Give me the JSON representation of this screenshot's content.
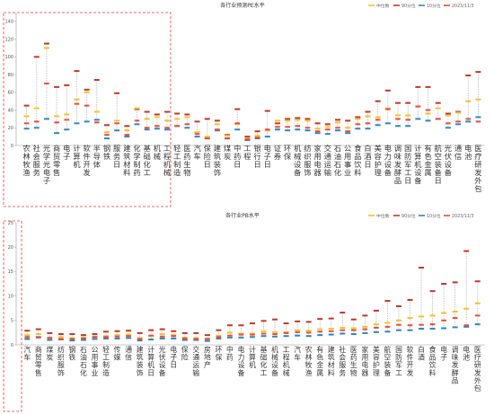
{
  "chart_data": [
    {
      "type": "box-range",
      "title": "各行业预测PE水平",
      "legend_position": "top-right",
      "series_names": [
        "中位数",
        "90分位",
        "10分位",
        "2023/11/3"
      ],
      "colors": {
        "median": "#f2c12e",
        "p90": "#c0392b",
        "p10": "#2e86c1",
        "current": "#e74c3c",
        "range_line": "#b0b0b0"
      },
      "y_ticks": [
        "0",
        "20",
        "40",
        "60",
        "80",
        "100",
        "120",
        "140"
      ],
      "ylim": [
        0,
        150
      ],
      "grid": false,
      "highlight_box": "first 13 categories (dashed red box)",
      "categories": [
        "农林牧渔",
        "社服",
        "光学光电子",
        "商贸零售",
        "电子",
        "计算机",
        "软件开发",
        "半导体",
        "钢铁",
        "服务",
        "建筑材料",
        "化学制药",
        "基础化工",
        "机械",
        "工程机械",
        "轻工制造",
        "医药生物",
        "汽车",
        "保险",
        "建筑装饰",
        "煤炭",
        "中药",
        "工程",
        "银行",
        "电子",
        "证券",
        "环保",
        "机械设备",
        "纺织服饰",
        "家用电器",
        "交通运输",
        "石油石化",
        "公用事业",
        "食品饮料",
        "白酒",
        "美容护理",
        "电力设备",
        "调味发酵品",
        "国防军工",
        "计算机设备",
        "有色金属",
        "航空装备",
        "光伏设备",
        "通信",
        "电池",
        "医疗研发外包"
      ],
      "categories_raw": [
        "农林牧渔",
        "社会服务",
        "光学光电子",
        "商贸零售",
        "电子",
        "计算机",
        "软件开发",
        "半导体",
        "钢铁",
        "服务",
        "建筑材料",
        "化学制药",
        "基础化工",
        "机械",
        "工程机械",
        "轻工制造",
        "医药生物",
        "汽车",
        "保险",
        "建筑装饰",
        "煤炭",
        "中药",
        "工程",
        "银行",
        "电子",
        "证券",
        "环保",
        "机械设备",
        "纺织服饰",
        "家用电器",
        "交通运输",
        "石油石化",
        "公用事业",
        "食品饮料",
        "白酒",
        "美容护理",
        "电力设备",
        "调味发酵品",
        "国防军工",
        "计算机设备",
        "有色金属",
        "航空装备",
        "光伏设备",
        "通信",
        "电池",
        "医疗研发外包"
      ],
      "label_lines": [
        [
          "农",
          "林",
          "牧",
          "渔"
        ],
        [
          "社",
          "会",
          "服",
          "务"
        ],
        [
          "光",
          "学",
          "光",
          "电",
          "子"
        ],
        [
          "商",
          "贸",
          "零",
          "售"
        ],
        [
          "电",
          "子"
        ],
        [
          "计",
          "算",
          "机"
        ],
        [
          "软",
          "件",
          "开",
          "发"
        ],
        [
          "半",
          "导",
          "体"
        ],
        [
          "钢",
          "铁"
        ],
        [
          "服",
          "务",
          "日"
        ],
        [
          "建",
          "筑",
          "材",
          "料"
        ],
        [
          "化",
          "学",
          "制",
          "药"
        ],
        [
          "基",
          "础",
          "化",
          "工"
        ],
        [
          "机",
          "械"
        ],
        [
          "工",
          "程",
          "机",
          "械"
        ],
        [
          "轻",
          "工",
          "制",
          "造"
        ],
        [
          "医",
          "药",
          "生",
          "物"
        ],
        [
          "汽",
          "车"
        ],
        [
          "保",
          "险",
          "日"
        ],
        [
          "建",
          "筑",
          "装",
          "饰"
        ],
        [
          "煤",
          "炭"
        ],
        [
          "中",
          "药",
          "日"
        ],
        [
          "工",
          "程"
        ],
        [
          "银",
          "行",
          "日"
        ],
        [
          "电",
          "子",
          "日"
        ],
        [
          "证",
          "券"
        ],
        [
          "环",
          "保"
        ],
        [
          "机",
          "械",
          "设",
          "备"
        ],
        [
          "纺",
          "织",
          "服",
          "饰"
        ],
        [
          "家",
          "用",
          "电",
          "器"
        ],
        [
          "交",
          "通",
          "运",
          "输"
        ],
        [
          "石",
          "油",
          "石",
          "化"
        ],
        [
          "公",
          "用",
          "事",
          "业"
        ],
        [
          "食",
          "品",
          "饮",
          "料"
        ],
        [
          "白",
          "酒",
          "日"
        ],
        [
          "美",
          "容",
          "护",
          "理"
        ],
        [
          "电",
          "力",
          "设",
          "备"
        ],
        [
          "调",
          "味",
          "发",
          "酵",
          "品"
        ],
        [
          "国",
          "防",
          "军",
          "工",
          "日"
        ],
        [
          "计",
          "算",
          "机",
          "设",
          "备"
        ],
        [
          "有",
          "色",
          "金",
          "属"
        ],
        [
          "航",
          "空",
          "装",
          "备",
          "日"
        ],
        [
          "光",
          "伏",
          "设",
          "备"
        ],
        [
          "通",
          "信"
        ],
        [
          "电",
          "池"
        ],
        [
          "医",
          "疗",
          "研",
          "发",
          "外",
          "包"
        ]
      ],
      "median": [
        33,
        42,
        110,
        33,
        35,
        52,
        60,
        38,
        15,
        28,
        17,
        42,
        30,
        32,
        28,
        30,
        32,
        15,
        10,
        24,
        11,
        24,
        8,
        11,
        17,
        28,
        28,
        29,
        28,
        19,
        21,
        26,
        20,
        30,
        33,
        32,
        42,
        34,
        34,
        44,
        36,
        42,
        34,
        37,
        50,
        52
      ],
      "p90": [
        45,
        100,
        115,
        66,
        68,
        84,
        63,
        74,
        23,
        59,
        22,
        41,
        38,
        35,
        38,
        36,
        35,
        27,
        30,
        28,
        12,
        41,
        10,
        16,
        39,
        25,
        30,
        31,
        30,
        25,
        24,
        29,
        28,
        32,
        38,
        50,
        62,
        48,
        48,
        66,
        66,
        48,
        36,
        38,
        79,
        83
      ],
      "p10": [
        19,
        20,
        30,
        14,
        18,
        25,
        27,
        29,
        8,
        17,
        10,
        24,
        18,
        19,
        18,
        22,
        20,
        10,
        8,
        17,
        8,
        18,
        6,
        8,
        10,
        18,
        17,
        18,
        17,
        14,
        13,
        17,
        14,
        19,
        19,
        23,
        25,
        22,
        22,
        30,
        28,
        30,
        20,
        24,
        27,
        32
      ],
      "current": [
        25,
        27,
        70,
        26,
        29,
        47,
        45,
        26,
        12,
        25,
        12,
        28,
        20,
        22,
        20,
        22,
        24,
        13,
        8,
        18,
        8,
        25,
        7,
        9,
        18,
        21,
        21,
        22,
        20,
        16,
        18,
        20,
        16,
        24,
        25,
        29,
        41,
        30,
        29,
        44,
        40,
        30,
        25,
        27,
        30,
        27
      ]
    },
    {
      "type": "box-range",
      "title": "各行业PB水平",
      "legend_position": "top-right",
      "series_names": [
        "中位数",
        "90分位",
        "10分位",
        "2023/11/3"
      ],
      "y_ticks": [
        "0",
        "5",
        "10",
        "15",
        "20",
        "25"
      ],
      "ylim": [
        0,
        25
      ],
      "grid": false,
      "highlight_box": "first category (dashed red box)",
      "categories": [
        "汽车",
        "商贸零售",
        "煤炭",
        "纺织服饰",
        "钢铁",
        "石油石化",
        "公用事业",
        "轻工制造",
        "传媒",
        "通信",
        "建筑装饰",
        "计算机",
        "光伏设备",
        "电子",
        "保险",
        "交通运输",
        "房地产",
        "环保",
        "中药",
        "电力设备",
        "计算机",
        "基础化工",
        "机械设备",
        "工程机械",
        "汽车",
        "农林牧渔",
        "有色金属",
        "建筑材料",
        "社会服务",
        "医药生物",
        "家用电器",
        "美容护理",
        "航空装备",
        "国防军工",
        "软件开发",
        "白酒",
        "食品饮料",
        "电子",
        "调味发酵品",
        "电池",
        "医疗研发外包"
      ],
      "label_lines": [
        [
          "汽",
          "车"
        ],
        [
          "商",
          "贸",
          "零",
          "售"
        ],
        [
          "煤",
          "炭"
        ],
        [
          "纺",
          "织",
          "服",
          "饰"
        ],
        [
          "钢",
          "铁"
        ],
        [
          "石",
          "油",
          "石",
          "化"
        ],
        [
          "公",
          "用",
          "事",
          "业"
        ],
        [
          "轻",
          "工",
          "制",
          "造"
        ],
        [
          "传",
          "媒"
        ],
        [
          "通",
          "信"
        ],
        [
          "建",
          "筑",
          "装",
          "饰"
        ],
        [
          "计",
          "算",
          "机",
          "日"
        ],
        [
          "光",
          "伏",
          "设",
          "备"
        ],
        [
          "电",
          "子",
          "日"
        ],
        [
          "保",
          "险"
        ],
        [
          "交",
          "通",
          "运",
          "输"
        ],
        [
          "房",
          "地",
          "产"
        ],
        [
          "环",
          "保"
        ],
        [
          "中",
          "药"
        ],
        [
          "电",
          "力",
          "设",
          "备"
        ],
        [
          "计",
          "算",
          "机"
        ],
        [
          "基",
          "础",
          "化",
          "工"
        ],
        [
          "机",
          "械",
          "设",
          "备"
        ],
        [
          "工",
          "程",
          "机",
          "械"
        ],
        [
          "汽",
          "车"
        ],
        [
          "农",
          "林",
          "牧",
          "渔"
        ],
        [
          "有",
          "色",
          "金",
          "属"
        ],
        [
          "建",
          "筑",
          "材",
          "料"
        ],
        [
          "社",
          "会",
          "服",
          "务"
        ],
        [
          "医",
          "药",
          "生",
          "物"
        ],
        [
          "家",
          "用",
          "电",
          "器"
        ],
        [
          "美",
          "容",
          "护",
          "理"
        ],
        [
          "航",
          "空",
          "装",
          "备"
        ],
        [
          "国",
          "防",
          "军",
          "工"
        ],
        [
          "软",
          "件",
          "开",
          "发"
        ],
        [
          "白",
          "酒"
        ],
        [
          "食",
          "品",
          "饮",
          "料"
        ],
        [
          "电",
          "子"
        ],
        [
          "调",
          "味",
          "发",
          "酵",
          "品"
        ],
        [
          "电",
          "池"
        ],
        [
          "医",
          "疗",
          "研",
          "发",
          "外",
          "包"
        ]
      ],
      "median": [
        2.0,
        2.2,
        1.5,
        1.6,
        1.4,
        1.5,
        1.7,
        1.8,
        2.0,
        2.1,
        1.4,
        1.8,
        2.2,
        2.0,
        1.5,
        1.4,
        1.3,
        1.9,
        2.5,
        2.3,
        2.3,
        2.8,
        2.6,
        2.6,
        3.0,
        2.9,
        3.2,
        3.3,
        3.5,
        3.4,
        3.7,
        4.2,
        4.5,
        5.0,
        5.5,
        5.8,
        6.0,
        6.5,
        6.8,
        7.4,
        8.5
      ],
      "p90": [
        2.9,
        3.2,
        2.4,
        2.2,
        2.2,
        2.0,
        2.2,
        2.7,
        2.8,
        2.9,
        2.4,
        3.0,
        3.2,
        2.8,
        2.4,
        2.4,
        2.0,
        3.0,
        4.0,
        4.0,
        4.4,
        4.9,
        5.2,
        4.4,
        4.8,
        4.7,
        5.3,
        5.4,
        6.6,
        5.2,
        6.0,
        7.0,
        9.0,
        7.9,
        9.2,
        15.8,
        11.0,
        12.5,
        12.8,
        19.2,
        13.0
      ],
      "p10": [
        1.2,
        1.6,
        1.0,
        1.1,
        0.9,
        1.0,
        1.2,
        1.3,
        1.3,
        1.4,
        0.9,
        1.1,
        1.3,
        1.3,
        1.0,
        1.0,
        0.8,
        1.3,
        1.5,
        1.5,
        1.6,
        1.8,
        1.7,
        1.8,
        1.9,
        1.8,
        2.0,
        2.1,
        2.3,
        2.2,
        2.4,
        2.6,
        2.7,
        3.0,
        3.0,
        3.3,
        3.3,
        3.4,
        3.6,
        3.7,
        4.2
      ],
      "current": [
        1.6,
        1.5,
        1.4,
        1.2,
        1.2,
        1.3,
        1.6,
        1.6,
        1.7,
        1.8,
        1.2,
        1.9,
        1.7,
        1.8,
        1.3,
        1.2,
        1.2,
        1.6,
        1.9,
        2.1,
        2.1,
        2.3,
        2.2,
        2.4,
        2.6,
        2.5,
        2.7,
        2.8,
        3.0,
        3.0,
        3.2,
        3.5,
        3.7,
        4.1,
        4.0,
        4.1,
        4.2,
        5.0,
        5.5,
        4.0,
        6.0
      ]
    }
  ]
}
